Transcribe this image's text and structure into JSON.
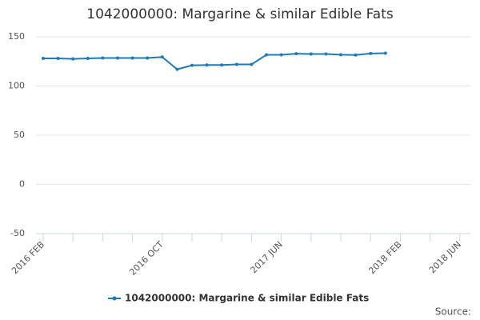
{
  "chart_data": {
    "type": "line",
    "title": "1042000000: Margarine & similar Edible Fats",
    "categories": [
      "2016 FEB",
      null,
      null,
      null,
      null,
      null,
      null,
      null,
      "2016 OCT",
      null,
      null,
      null,
      null,
      null,
      null,
      null,
      "2017 JUN",
      null,
      null,
      null,
      null,
      null,
      null,
      null,
      "2018 FEB",
      null,
      null,
      null,
      "2018 JUN"
    ],
    "series": [
      {
        "name": "1042000000: Margarine & similar Edible Fats",
        "color": "#1f7bb6",
        "values": [
          128,
          128,
          127.5,
          128,
          128.5,
          128.5,
          128.5,
          128.5,
          129.5,
          117,
          121,
          121.3,
          121.3,
          122,
          122,
          131.7,
          131.7,
          132.8,
          132.5,
          132.5,
          131.8,
          131.5,
          133,
          133.3,
          null,
          null,
          null,
          null,
          null
        ]
      }
    ],
    "ylim": [
      -50,
      150
    ],
    "yticks": [
      -50,
      0,
      50,
      100,
      150
    ],
    "grid": true,
    "legend": "bottom",
    "source": "Source:"
  }
}
